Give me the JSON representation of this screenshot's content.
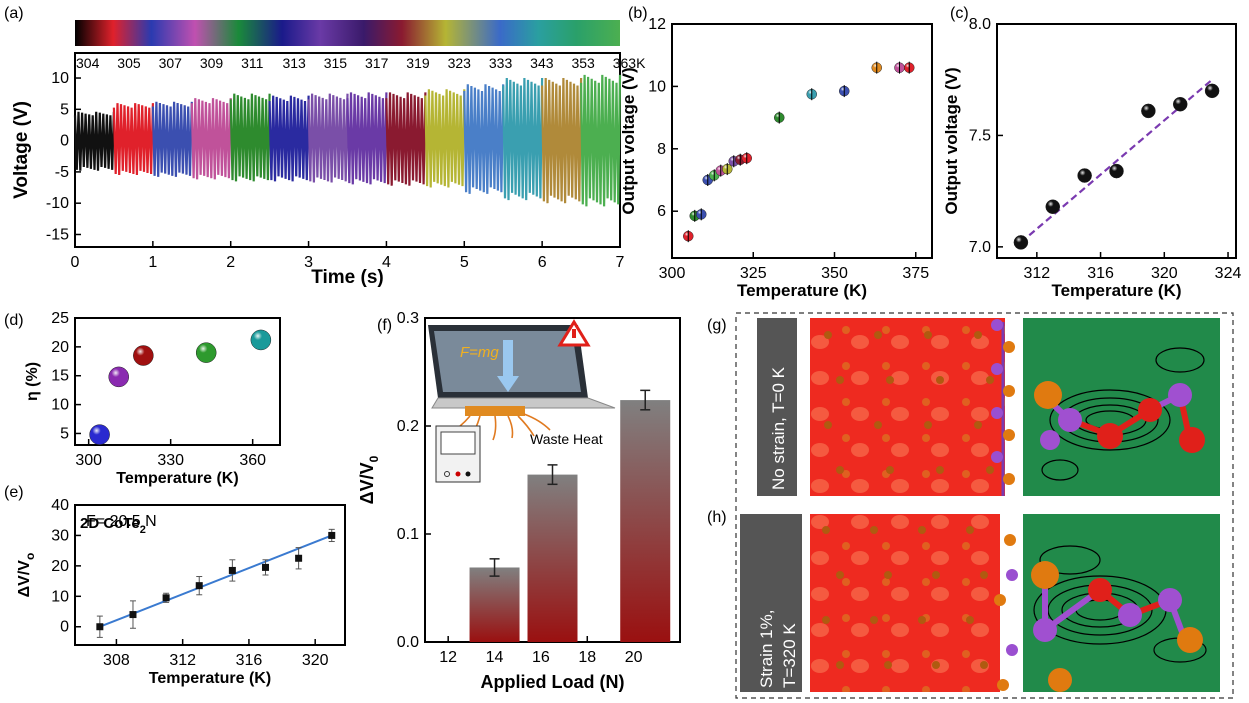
{
  "panels": {
    "a": {
      "label": "(a)",
      "temps_text": [
        "304",
        "305",
        "307",
        "309",
        "311",
        "313",
        "315",
        "317",
        "319",
        "323",
        "333",
        "343",
        "353",
        "363K"
      ],
      "material_main": "2D CoTe",
      "material_sub": "2"
    },
    "b": {
      "label": "(b)"
    },
    "c": {
      "label": "(c)"
    },
    "d": {
      "label": "(d)"
    },
    "e": {
      "label": "(e)",
      "annotation": "F= 20.5 N"
    },
    "f": {
      "label": "(f)",
      "inset_force": "F=mg",
      "inset_heat": "Waste Heat"
    },
    "g": {
      "label": "(g)",
      "caption": "No strain, T=0 K"
    },
    "h": {
      "label": "(h)",
      "caption_line1": "Strain 1%,",
      "caption_line2": "T=320 K"
    }
  },
  "colors": {
    "band_colors": [
      "#111111",
      "#e0212b",
      "#3b4fb0",
      "#c0529a",
      "#2e8b2e",
      "#2a2aa0",
      "#7a4fa8",
      "#6a3aa6",
      "#8a1a30",
      "#b5b534",
      "#4a7fc8",
      "#3a9fb0",
      "#b08a3a",
      "#4caf50"
    ]
  },
  "chart_data": [
    {
      "panel": "a",
      "type": "line",
      "xlabel": "Time (s)",
      "ylabel": "Voltage (V)",
      "xlim": [
        0,
        7
      ],
      "ylim": [
        -17,
        14
      ],
      "xticks": [
        "0",
        "1",
        "2",
        "3",
        "4",
        "5",
        "6",
        "7"
      ],
      "yticks": [
        "-15",
        "-10",
        "-5",
        "0",
        "5",
        "10"
      ],
      "segments": [
        {
          "temperature": "304",
          "t_start": 0.0,
          "t_end": 0.5,
          "v_max": 4.6,
          "v_min": -4.8
        },
        {
          "temperature": "305",
          "t_start": 0.5,
          "t_end": 1.0,
          "v_max": 6.0,
          "v_min": -5.5
        },
        {
          "temperature": "307",
          "t_start": 1.0,
          "t_end": 1.5,
          "v_max": 6.2,
          "v_min": -5.8
        },
        {
          "temperature": "309",
          "t_start": 1.5,
          "t_end": 2.0,
          "v_max": 6.8,
          "v_min": -6.2
        },
        {
          "temperature": "311",
          "t_start": 2.0,
          "t_end": 2.5,
          "v_max": 7.5,
          "v_min": -6.5
        },
        {
          "temperature": "313",
          "t_start": 2.5,
          "t_end": 3.0,
          "v_max": 7.2,
          "v_min": -6.5
        },
        {
          "temperature": "315",
          "t_start": 3.0,
          "t_end": 3.5,
          "v_max": 7.5,
          "v_min": -6.7
        },
        {
          "temperature": "317",
          "t_start": 3.5,
          "t_end": 4.0,
          "v_max": 7.7,
          "v_min": -7.0
        },
        {
          "temperature": "319",
          "t_start": 4.0,
          "t_end": 4.5,
          "v_max": 7.7,
          "v_min": -7.2
        },
        {
          "temperature": "323",
          "t_start": 4.5,
          "t_end": 5.0,
          "v_max": 8.2,
          "v_min": -7.5
        },
        {
          "temperature": "333",
          "t_start": 5.0,
          "t_end": 5.5,
          "v_max": 9.0,
          "v_min": -8.5
        },
        {
          "temperature": "343",
          "t_start": 5.5,
          "t_end": 6.0,
          "v_max": 10.0,
          "v_min": -9.5
        },
        {
          "temperature": "353",
          "t_start": 6.0,
          "t_end": 6.5,
          "v_max": 10.0,
          "v_min": -10.0
        },
        {
          "temperature": "363K",
          "t_start": 6.5,
          "t_end": 7.0,
          "v_max": 10.5,
          "v_min": -10.5
        }
      ]
    },
    {
      "panel": "b",
      "type": "scatter",
      "xlabel": "Temperature (K)",
      "ylabel": "Output voltage (V)",
      "xlim": [
        300,
        380
      ],
      "ylim": [
        4.5,
        12
      ],
      "xticks": [
        300,
        325,
        350,
        375
      ],
      "yticks": [
        6,
        8,
        10,
        12
      ],
      "x": [
        305,
        307,
        309,
        311,
        313,
        315,
        317,
        319,
        321,
        323,
        333,
        343,
        353,
        363,
        370,
        373
      ],
      "y": [
        5.2,
        5.85,
        5.9,
        7.0,
        7.15,
        7.3,
        7.35,
        7.6,
        7.65,
        7.7,
        9.0,
        9.75,
        9.85,
        10.6,
        10.6,
        10.6
      ],
      "colors": [
        "#e0212b",
        "#2e8b2e",
        "#3b4fb0",
        "#3b4fb0",
        "#4caf50",
        "#c0529a",
        "#b5b534",
        "#7a4fa8",
        "#8a1a30",
        "#e0212b",
        "#2e8b2e",
        "#3a9fb0",
        "#3b4fb0",
        "#e08a20",
        "#c0529a",
        "#e0212b"
      ]
    },
    {
      "panel": "c",
      "type": "scatter",
      "xlabel": "Temperature (K)",
      "ylabel": "Output voltage (V)",
      "xlim": [
        309.5,
        324.5
      ],
      "ylim": [
        6.95,
        8.0
      ],
      "xticks": [
        312,
        316,
        320,
        324
      ],
      "yticks": [
        "7.0",
        "7.5",
        "8.0"
      ],
      "x": [
        311,
        313,
        315,
        317,
        319,
        321,
        323
      ],
      "y": [
        7.02,
        7.18,
        7.32,
        7.34,
        7.61,
        7.64,
        7.7
      ],
      "fit": {
        "x": [
          311,
          323
        ],
        "y": [
          7.02,
          7.75
        ]
      }
    },
    {
      "panel": "d",
      "type": "scatter",
      "xlabel": "Temperature (K)",
      "ylabel": "η (%)",
      "xlim": [
        295,
        370
      ],
      "ylim": [
        3,
        25
      ],
      "xticks": [
        300,
        330,
        360
      ],
      "yticks": [
        5,
        10,
        15,
        20,
        25
      ],
      "x": [
        304,
        311,
        320,
        343,
        363
      ],
      "y": [
        4.8,
        14.8,
        18.5,
        19.0,
        21.2
      ],
      "colors": [
        "#2a2ad0",
        "#8a2ab0",
        "#a01010",
        "#2e9a2e",
        "#1a9a9a"
      ]
    },
    {
      "panel": "e",
      "type": "scatter",
      "xlabel": "Temperature (K)",
      "ylabel": "ΔV/V",
      "ylabel_sub": "o",
      "xlim": [
        305.5,
        321.8
      ],
      "ylim": [
        -6,
        40
      ],
      "xticks": [
        308,
        312,
        316,
        320
      ],
      "yticks": [
        0,
        10,
        20,
        30,
        40
      ],
      "x": [
        307,
        309,
        311,
        313,
        315,
        317,
        319,
        321
      ],
      "y": [
        0,
        4,
        9.5,
        13.5,
        18.5,
        19.5,
        22.5,
        30
      ],
      "err": [
        3.5,
        4.5,
        1.5,
        3,
        3.5,
        2.5,
        3.5,
        2
      ],
      "fit": {
        "x": [
          307,
          321
        ],
        "y": [
          0,
          30
        ]
      }
    },
    {
      "panel": "f",
      "type": "bar",
      "xlabel": "Applied Load (N)",
      "ylabel": "ΔV/V",
      "ylabel_sub": "0",
      "xlim": [
        11,
        22
      ],
      "ylim": [
        0,
        0.3
      ],
      "xticks": [
        12,
        14,
        16,
        18,
        20
      ],
      "yticks": [
        "0.0",
        "0.1",
        "0.2",
        "0.3"
      ],
      "categories": [
        14,
        16.5,
        20.5
      ],
      "values": [
        0.069,
        0.155,
        0.224
      ],
      "err": [
        0.008,
        0.009,
        0.009
      ]
    }
  ]
}
